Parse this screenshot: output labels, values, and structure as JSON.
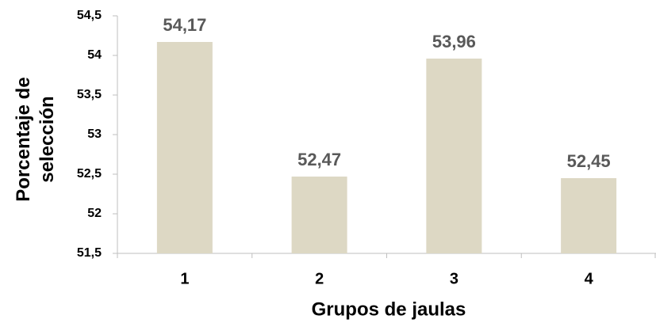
{
  "chart_data": {
    "type": "bar",
    "xlabel": "Grupos de jaulas",
    "ylabel": "Porcentaje de selección",
    "categories": [
      "1",
      "2",
      "3",
      "4"
    ],
    "values": [
      54.17,
      52.47,
      53.96,
      52.45
    ],
    "value_labels": [
      "54,17",
      "52,47",
      "53,96",
      "52,45"
    ],
    "color": "#ddd8c4",
    "ylim": [
      51.5,
      54.5
    ],
    "yticks": [
      {
        "value": 51.5,
        "label": "51,5"
      },
      52,
      {
        "value": 52.5,
        "label": "52,5"
      },
      53,
      {
        "value": 53.5,
        "label": "53,5"
      },
      54,
      {
        "value": 54.5,
        "label": "54,5"
      }
    ],
    "grid": false
  }
}
